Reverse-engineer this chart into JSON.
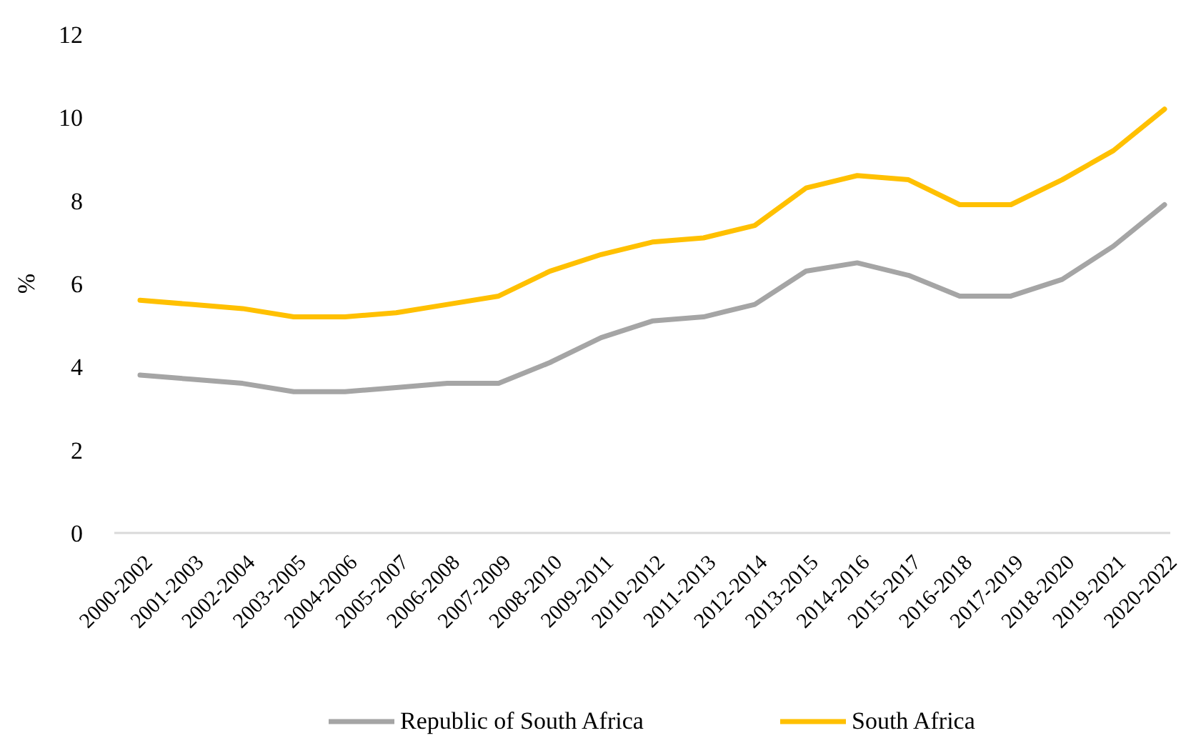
{
  "chart_data": {
    "type": "line",
    "ylabel": "%",
    "categories": [
      "2000-2002",
      "2001-2003",
      "2002-2004",
      "2003-2005",
      "2004-2006",
      "2005-2007",
      "2006-2008",
      "2007-2009",
      "2008-2010",
      "2009-2011",
      "2010-2012",
      "2011-2013",
      "2012-2014",
      "2013-2015",
      "2014-2016",
      "2015-2017",
      "2016-2018",
      "2017-2019",
      "2018-2020",
      "2019-2021",
      "2020-2022"
    ],
    "series": [
      {
        "name": "Republic of South Africa",
        "color": "#a5a5a5",
        "values": [
          3.8,
          3.7,
          3.6,
          3.4,
          3.4,
          3.5,
          3.6,
          3.6,
          4.1,
          4.7,
          5.1,
          5.2,
          5.5,
          6.3,
          6.5,
          6.2,
          5.7,
          5.7,
          6.1,
          6.9,
          7.9
        ]
      },
      {
        "name": "South Africa",
        "color": "#ffc000",
        "values": [
          5.6,
          5.5,
          5.4,
          5.2,
          5.2,
          5.3,
          5.5,
          5.7,
          6.3,
          6.7,
          7.0,
          7.1,
          7.4,
          8.3,
          8.6,
          8.5,
          7.9,
          7.9,
          8.5,
          9.2,
          10.2
        ]
      }
    ],
    "ylim": [
      0,
      12
    ],
    "yticks": [
      0,
      2,
      4,
      6,
      8,
      10,
      12
    ],
    "grid": false,
    "legend": "bottom",
    "marker": "none",
    "line_style": "solid"
  }
}
